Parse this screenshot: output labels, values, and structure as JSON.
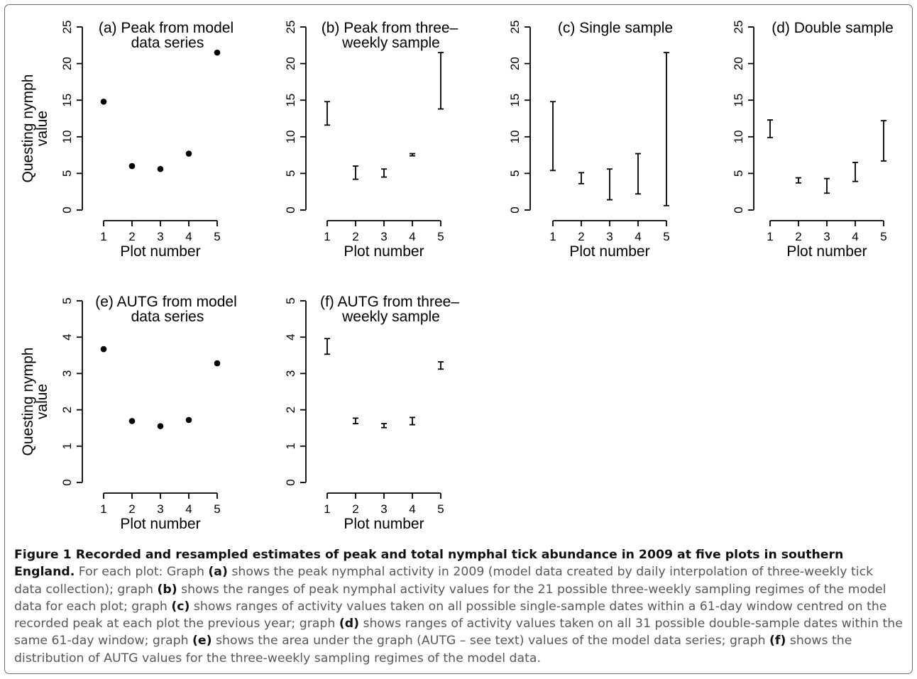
{
  "chart_data": [
    {
      "type": "scatter",
      "panel": "(a)",
      "title_line1": "(a) Peak from model",
      "title_line2": "data series",
      "xlabel": "Plot number",
      "ylabel_line1": "Questing nymph",
      "ylabel_line2": "value",
      "x": [
        1,
        2,
        3,
        4,
        5
      ],
      "y": [
        14.8,
        6.0,
        5.6,
        7.7,
        21.5
      ],
      "xticks": [
        "1",
        "2",
        "3",
        "4",
        "5"
      ],
      "yticks": [
        "0",
        "5",
        "10",
        "15",
        "20",
        "25"
      ],
      "ylim": [
        0,
        25
      ]
    },
    {
      "type": "range",
      "panel": "(b)",
      "title_line1": "(b) Peak from three–",
      "title_line2": "weekly sample",
      "xlabel": "Plot number",
      "x": [
        1,
        2,
        3,
        4,
        5
      ],
      "low": [
        11.6,
        4.2,
        4.5,
        7.4,
        13.8
      ],
      "high": [
        14.8,
        6.0,
        5.6,
        7.7,
        21.5
      ],
      "xticks": [
        "1",
        "2",
        "3",
        "4",
        "5"
      ],
      "yticks": [
        "0",
        "5",
        "10",
        "15",
        "20",
        "25"
      ],
      "ylim": [
        0,
        25
      ]
    },
    {
      "type": "range",
      "panel": "(c)",
      "title_line1": "(c) Single sample",
      "title_line2": "",
      "xlabel": "Plot number",
      "x": [
        1,
        2,
        3,
        4,
        5
      ],
      "low": [
        5.4,
        3.6,
        1.4,
        2.2,
        0.6
      ],
      "high": [
        14.8,
        5.1,
        5.6,
        7.7,
        21.5
      ],
      "xticks": [
        "1",
        "2",
        "3",
        "4",
        "5"
      ],
      "yticks": [
        "0",
        "5",
        "10",
        "15",
        "20",
        "25"
      ],
      "ylim": [
        0,
        25
      ]
    },
    {
      "type": "range",
      "panel": "(d)",
      "title_line1": "(d) Double sample",
      "title_line2": "",
      "xlabel": "Plot number",
      "x": [
        1,
        2,
        3,
        4,
        5
      ],
      "low": [
        9.9,
        3.7,
        2.3,
        3.9,
        6.7
      ],
      "high": [
        12.3,
        4.4,
        4.3,
        6.5,
        12.2
      ],
      "xticks": [
        "1",
        "2",
        "3",
        "4",
        "5"
      ],
      "yticks": [
        "0",
        "5",
        "10",
        "15",
        "20",
        "25"
      ],
      "ylim": [
        0,
        25
      ]
    },
    {
      "type": "scatter",
      "panel": "(e)",
      "title_line1": "(e) AUTG from model",
      "title_line2": "data series",
      "xlabel": "Plot number",
      "ylabel_line1": "Questing nymph",
      "ylabel_line2": "value",
      "x": [
        1,
        2,
        3,
        4,
        5
      ],
      "y": [
        3.67,
        1.69,
        1.55,
        1.72,
        3.28
      ],
      "xticks": [
        "1",
        "2",
        "3",
        "4",
        "5"
      ],
      "yticks": [
        "0",
        "1",
        "2",
        "3",
        "4",
        "5"
      ],
      "ylim": [
        0,
        5
      ]
    },
    {
      "type": "range",
      "panel": "(f)",
      "title_line1": "(f) AUTG from three–",
      "title_line2": "weekly sample",
      "xlabel": "Plot number",
      "x": [
        1,
        2,
        3,
        4,
        5
      ],
      "low": [
        3.53,
        1.62,
        1.51,
        1.59,
        3.12
      ],
      "high": [
        3.96,
        1.77,
        1.62,
        1.79,
        3.32
      ],
      "xticks": [
        "1",
        "2",
        "3",
        "4",
        "5"
      ],
      "yticks": [
        "0",
        "1",
        "2",
        "3",
        "4",
        "5"
      ],
      "ylim": [
        0,
        5
      ]
    }
  ],
  "caption": {
    "title": "Figure 1 Recorded and resampled estimates of peak and total nymphal tick abundance in 2009 at five plots in southern England.",
    "t1": " For each plot: Graph ",
    "a": "(a)",
    "t2": " shows the peak nymphal activity in 2009 (model data created by daily interpolation of three-weekly tick data collection); graph ",
    "b": "(b)",
    "t3": " shows the ranges of peak nymphal activity values for the 21 possible three-weekly sampling regimes of the model data for each plot; graph ",
    "c": "(c)",
    "t4": " shows ranges of activity values taken on all possible single-sample dates within a 61-day window centred on the recorded peak at each plot the previous year; graph ",
    "d": "(d)",
    "t5": " shows ranges of activity values taken on all 31 possible double-sample dates within the same 61-day window; graph ",
    "e": "(e)",
    "t6": " shows the area under the graph (AUTG – see text) values of the model data series; graph ",
    "f": "(f)",
    "t7": " shows the distribution of AUTG values for the three-weekly sampling regimes of the model data."
  }
}
